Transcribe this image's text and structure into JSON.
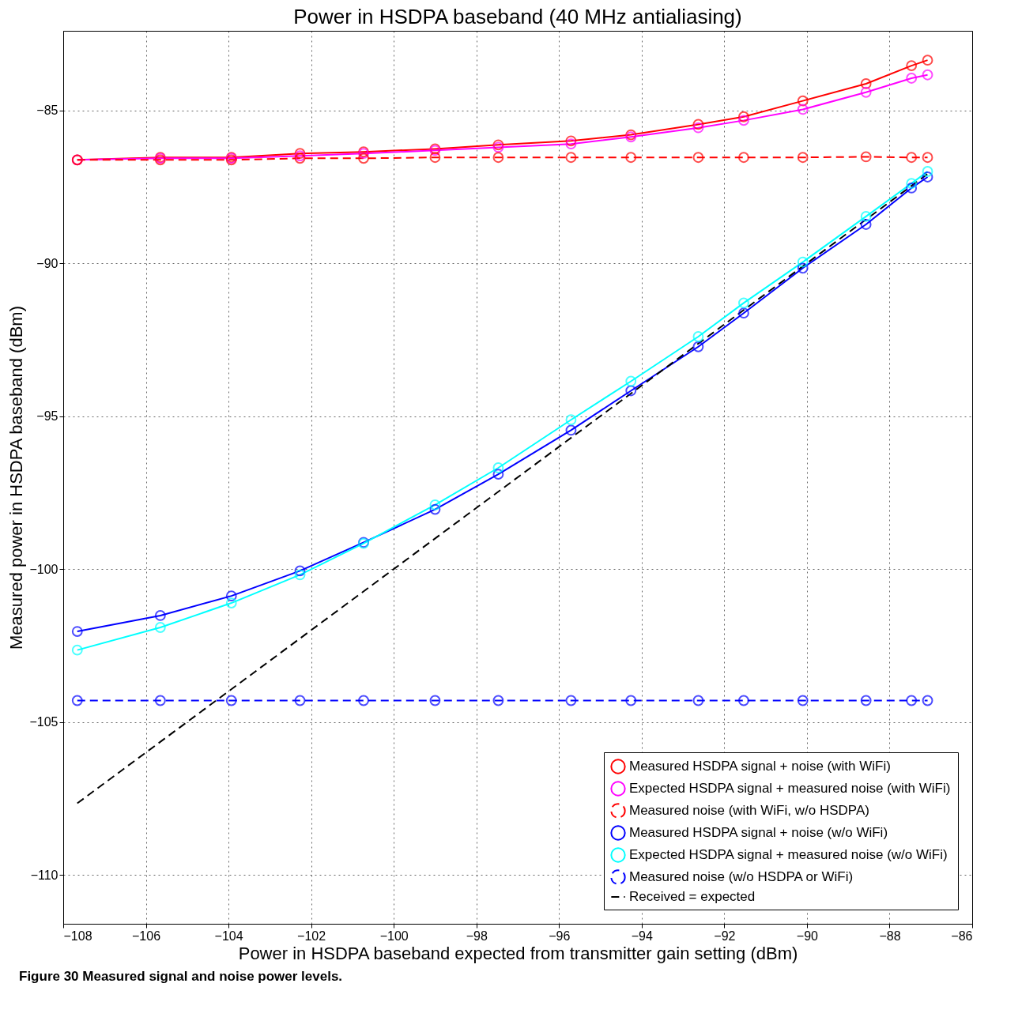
{
  "chart_data": {
    "type": "line",
    "title": "Power in HSDPA baseband (40 MHz antialiasing)",
    "xlabel": "Power in HSDPA baseband expected from transmitter gain setting (dBm)",
    "ylabel": "Measured power in HSDPA baseband (dBm)",
    "x": [
      -107.66,
      -105.65,
      -103.93,
      -102.27,
      -100.73,
      -99.0,
      -97.47,
      -95.71,
      -94.26,
      -92.63,
      -91.53,
      -90.1,
      -88.57,
      -87.47,
      -87.08
    ],
    "series": [
      {
        "name": "Measured HSDPA signal + noise (with WiFi)",
        "color": "#ff0000",
        "marker": "circle",
        "line_style": "solid",
        "values": [
          -86.62,
          -86.54,
          -86.54,
          -86.41,
          -86.36,
          -86.26,
          -86.13,
          -86.0,
          -85.8,
          -85.46,
          -85.21,
          -84.69,
          -84.13,
          -83.54,
          -83.36
        ]
      },
      {
        "name": "Expected HSDPA signal + measured noise (with WiFi)",
        "color": "#ff00ff",
        "marker": "circle",
        "line_style": "solid",
        "values": [
          -86.62,
          -86.57,
          -86.57,
          -86.49,
          -86.41,
          -86.31,
          -86.21,
          -86.1,
          -85.87,
          -85.57,
          -85.33,
          -84.97,
          -84.41,
          -83.95,
          -83.84
        ]
      },
      {
        "name": "Measured noise (with WiFi, w/o HSDPA)",
        "color": "#ff0000",
        "marker": "circle",
        "line_style": "dashed",
        "values": [
          -86.62,
          -86.62,
          -86.62,
          -86.57,
          -86.57,
          -86.54,
          -86.54,
          -86.54,
          -86.54,
          -86.54,
          -86.54,
          -86.54,
          -86.52,
          -86.54,
          -86.54
        ]
      },
      {
        "name": "Measured HSDPA signal + noise (w/o WiFi)",
        "color": "#0000ff",
        "marker": "circle",
        "line_style": "solid",
        "values": [
          -102.04,
          -101.52,
          -100.88,
          -100.06,
          -99.13,
          -98.05,
          -96.9,
          -95.46,
          -94.17,
          -92.73,
          -91.63,
          -90.16,
          -88.73,
          -87.54,
          -87.18
        ]
      },
      {
        "name": "Expected HSDPA signal + measured noise (w/o WiFi)",
        "color": "#00ffff",
        "marker": "circle",
        "line_style": "solid",
        "values": [
          -102.65,
          -101.91,
          -101.11,
          -100.19,
          -99.16,
          -97.9,
          -96.69,
          -95.12,
          -93.86,
          -92.4,
          -91.3,
          -89.96,
          -88.47,
          -87.39,
          -87.0
        ]
      },
      {
        "name": "Measured noise (w/o HSDPA or WiFi)",
        "color": "#0000ff",
        "marker": "circle",
        "line_style": "dashed",
        "values": [
          -104.3,
          -104.3,
          -104.3,
          -104.3,
          -104.3,
          -104.3,
          -104.3,
          -104.3,
          -104.3,
          -104.3,
          -104.3,
          -104.3,
          -104.3,
          -104.3,
          -104.3
        ]
      },
      {
        "name": "Received = expected",
        "color": "#000000",
        "marker": "none",
        "line_style": "dashed",
        "x": [
          -107.66,
          -87.08
        ],
        "values": [
          -107.66,
          -87.08
        ]
      }
    ],
    "xlim": [
      -108,
      -86
    ],
    "xticks": [
      -108,
      -106,
      -104,
      -102,
      -100,
      -98,
      -96,
      -94,
      -92,
      -90,
      -88,
      -86
    ],
    "ylim": [
      -111.6,
      -82.4
    ],
    "yticks": [
      -110,
      -105,
      -100,
      -95,
      -90,
      -85
    ],
    "grid": true,
    "legend": "bottom right",
    "annotations": [
      "Figure 30 Measured signal and noise power levels."
    ]
  }
}
